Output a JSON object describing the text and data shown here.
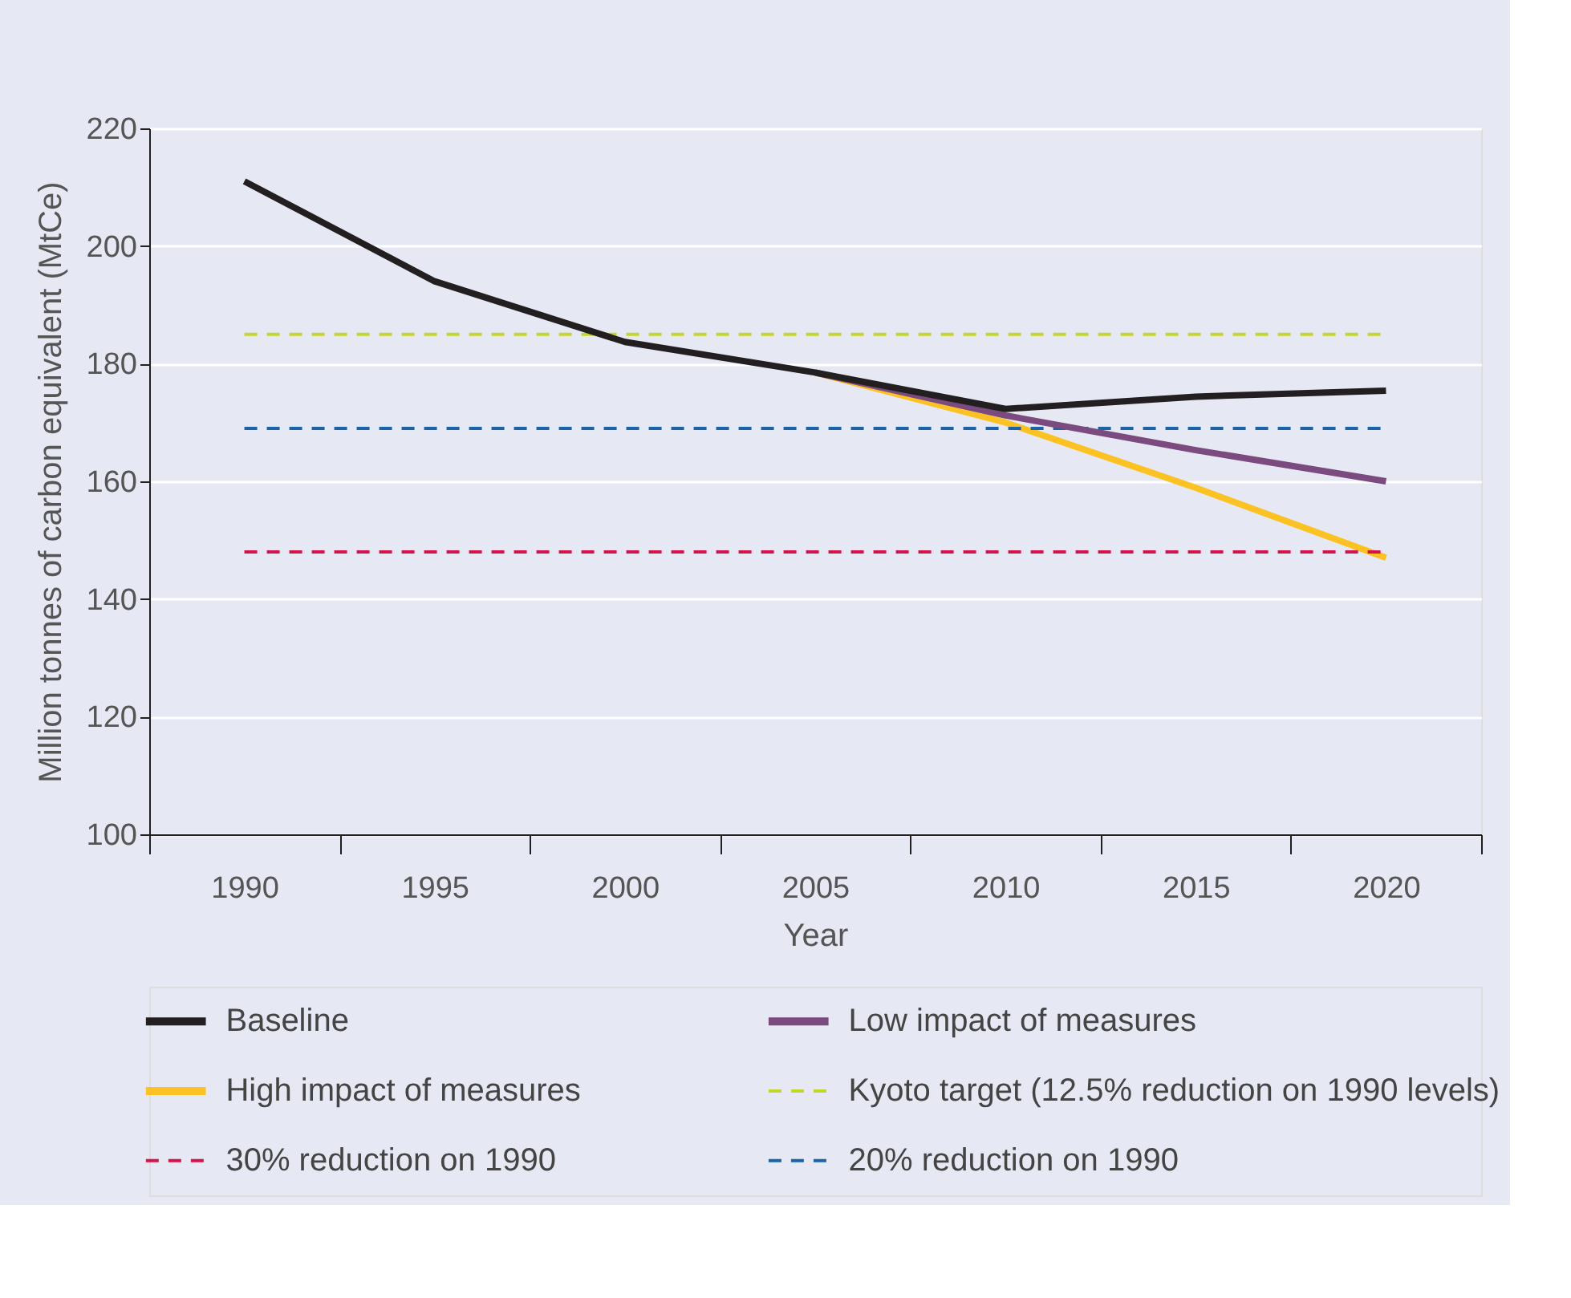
{
  "chart_data": {
    "type": "line",
    "xlabel": "Year",
    "ylabel": "Million tonnes of carbon equivalent (MtCe)",
    "categories": [
      "1990",
      "1995",
      "2000",
      "2005",
      "2010",
      "2015",
      "2020"
    ],
    "series": [
      {
        "name": "Baseline",
        "color": "#231f20",
        "values": [
          211,
          194,
          183.7,
          178.5,
          172.3,
          174.4,
          175.4
        ]
      },
      {
        "name": "Low impact of measures",
        "color": "#7b4a7e",
        "values": [
          null,
          null,
          null,
          178.5,
          171.2,
          165.3,
          160
        ]
      },
      {
        "name": "High impact of measures",
        "color": "#fcc223",
        "values": [
          null,
          null,
          null,
          178.5,
          170,
          158.9,
          147
        ]
      }
    ],
    "ref_lines": [
      {
        "axis": "y",
        "value": 185,
        "label": "Kyoto target (12.5% reduction on 1990 levels)",
        "color": "#c5d530",
        "line_style": "dashed"
      },
      {
        "axis": "y",
        "value": 148,
        "label": "30% reduction on 1990",
        "color": "#d6124b",
        "line_style": "dashed"
      },
      {
        "axis": "y",
        "value": 169,
        "label": "20% reduction on 1990",
        "color": "#1b63a6",
        "line_style": "dashed"
      }
    ],
    "ylim": [
      100,
      220
    ],
    "yticks": [
      100,
      120,
      140,
      160,
      180,
      200,
      220
    ],
    "grid": "y",
    "legend": "bottom",
    "line_style": "solid",
    "marker": "none"
  }
}
